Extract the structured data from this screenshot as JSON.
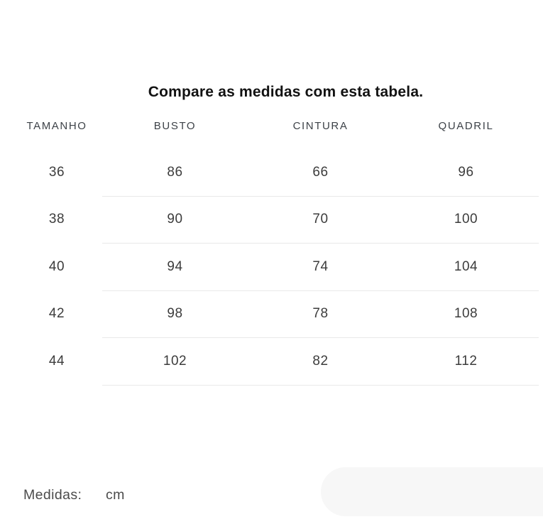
{
  "title": "Compare as medidas com esta tabela.",
  "table": {
    "headers": [
      "TAMANHO",
      "BUSTO",
      "CINTURA",
      "QUADRIL"
    ],
    "rows": [
      [
        "36",
        "86",
        "66",
        "96"
      ],
      [
        "38",
        "90",
        "70",
        "100"
      ],
      [
        "40",
        "94",
        "74",
        "104"
      ],
      [
        "42",
        "98",
        "78",
        "108"
      ],
      [
        "44",
        "102",
        "82",
        "112"
      ]
    ]
  },
  "footer": {
    "label": "Medidas:",
    "value": "cm"
  },
  "colors": {
    "title_text": "#121212",
    "header_text": "#3d4248",
    "cell_text": "#3c3c3c",
    "footer_text": "#4b4b4b",
    "divider": "#e9e9e9",
    "placeholder_pill": "#f7f7f7",
    "background": "#ffffff"
  }
}
